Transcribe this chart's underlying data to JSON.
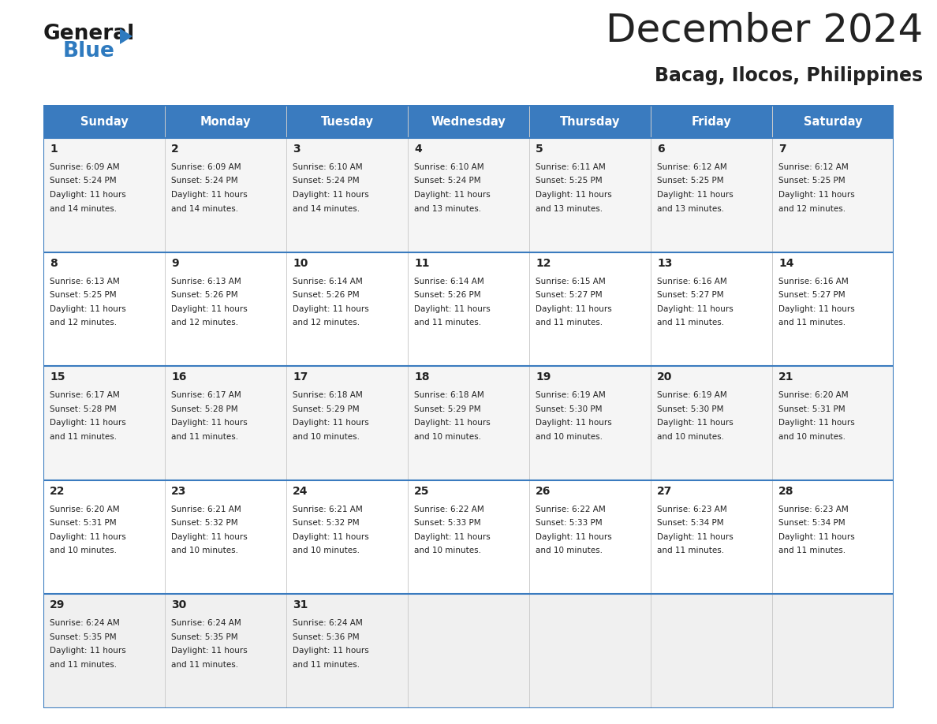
{
  "title": "December 2024",
  "subtitle": "Bacag, Ilocos, Philippines",
  "header_bg_color": "#3a7bbf",
  "header_text_color": "#ffffff",
  "cell_bg_color_even": "#f5f5f5",
  "cell_bg_color_odd": "#ffffff",
  "last_row_bg": "#f0f0f0",
  "grid_line_color": "#3a7bbf",
  "text_color": "#222222",
  "days_of_week": [
    "Sunday",
    "Monday",
    "Tuesday",
    "Wednesday",
    "Thursday",
    "Friday",
    "Saturday"
  ],
  "calendar": [
    [
      {
        "day": 1,
        "sunrise": "6:09 AM",
        "sunset": "5:24 PM",
        "daylight": "11 hours and 14 minutes."
      },
      {
        "day": 2,
        "sunrise": "6:09 AM",
        "sunset": "5:24 PM",
        "daylight": "11 hours and 14 minutes."
      },
      {
        "day": 3,
        "sunrise": "6:10 AM",
        "sunset": "5:24 PM",
        "daylight": "11 hours and 14 minutes."
      },
      {
        "day": 4,
        "sunrise": "6:10 AM",
        "sunset": "5:24 PM",
        "daylight": "11 hours and 13 minutes."
      },
      {
        "day": 5,
        "sunrise": "6:11 AM",
        "sunset": "5:25 PM",
        "daylight": "11 hours and 13 minutes."
      },
      {
        "day": 6,
        "sunrise": "6:12 AM",
        "sunset": "5:25 PM",
        "daylight": "11 hours and 13 minutes."
      },
      {
        "day": 7,
        "sunrise": "6:12 AM",
        "sunset": "5:25 PM",
        "daylight": "11 hours and 12 minutes."
      }
    ],
    [
      {
        "day": 8,
        "sunrise": "6:13 AM",
        "sunset": "5:25 PM",
        "daylight": "11 hours and 12 minutes."
      },
      {
        "day": 9,
        "sunrise": "6:13 AM",
        "sunset": "5:26 PM",
        "daylight": "11 hours and 12 minutes."
      },
      {
        "day": 10,
        "sunrise": "6:14 AM",
        "sunset": "5:26 PM",
        "daylight": "11 hours and 12 minutes."
      },
      {
        "day": 11,
        "sunrise": "6:14 AM",
        "sunset": "5:26 PM",
        "daylight": "11 hours and 11 minutes."
      },
      {
        "day": 12,
        "sunrise": "6:15 AM",
        "sunset": "5:27 PM",
        "daylight": "11 hours and 11 minutes."
      },
      {
        "day": 13,
        "sunrise": "6:16 AM",
        "sunset": "5:27 PM",
        "daylight": "11 hours and 11 minutes."
      },
      {
        "day": 14,
        "sunrise": "6:16 AM",
        "sunset": "5:27 PM",
        "daylight": "11 hours and 11 minutes."
      }
    ],
    [
      {
        "day": 15,
        "sunrise": "6:17 AM",
        "sunset": "5:28 PM",
        "daylight": "11 hours and 11 minutes."
      },
      {
        "day": 16,
        "sunrise": "6:17 AM",
        "sunset": "5:28 PM",
        "daylight": "11 hours and 11 minutes."
      },
      {
        "day": 17,
        "sunrise": "6:18 AM",
        "sunset": "5:29 PM",
        "daylight": "11 hours and 10 minutes."
      },
      {
        "day": 18,
        "sunrise": "6:18 AM",
        "sunset": "5:29 PM",
        "daylight": "11 hours and 10 minutes."
      },
      {
        "day": 19,
        "sunrise": "6:19 AM",
        "sunset": "5:30 PM",
        "daylight": "11 hours and 10 minutes."
      },
      {
        "day": 20,
        "sunrise": "6:19 AM",
        "sunset": "5:30 PM",
        "daylight": "11 hours and 10 minutes."
      },
      {
        "day": 21,
        "sunrise": "6:20 AM",
        "sunset": "5:31 PM",
        "daylight": "11 hours and 10 minutes."
      }
    ],
    [
      {
        "day": 22,
        "sunrise": "6:20 AM",
        "sunset": "5:31 PM",
        "daylight": "11 hours and 10 minutes."
      },
      {
        "day": 23,
        "sunrise": "6:21 AM",
        "sunset": "5:32 PM",
        "daylight": "11 hours and 10 minutes."
      },
      {
        "day": 24,
        "sunrise": "6:21 AM",
        "sunset": "5:32 PM",
        "daylight": "11 hours and 10 minutes."
      },
      {
        "day": 25,
        "sunrise": "6:22 AM",
        "sunset": "5:33 PM",
        "daylight": "11 hours and 10 minutes."
      },
      {
        "day": 26,
        "sunrise": "6:22 AM",
        "sunset": "5:33 PM",
        "daylight": "11 hours and 10 minutes."
      },
      {
        "day": 27,
        "sunrise": "6:23 AM",
        "sunset": "5:34 PM",
        "daylight": "11 hours and 11 minutes."
      },
      {
        "day": 28,
        "sunrise": "6:23 AM",
        "sunset": "5:34 PM",
        "daylight": "11 hours and 11 minutes."
      }
    ],
    [
      {
        "day": 29,
        "sunrise": "6:24 AM",
        "sunset": "5:35 PM",
        "daylight": "11 hours and 11 minutes."
      },
      {
        "day": 30,
        "sunrise": "6:24 AM",
        "sunset": "5:35 PM",
        "daylight": "11 hours and 11 minutes."
      },
      {
        "day": 31,
        "sunrise": "6:24 AM",
        "sunset": "5:36 PM",
        "daylight": "11 hours and 11 minutes."
      },
      null,
      null,
      null,
      null
    ]
  ],
  "logo_color1": "#1a1a1a",
  "logo_color2": "#2e7abf",
  "logo_triangle_color": "#2e7abf",
  "fig_width": 11.88,
  "fig_height": 9.18,
  "dpi": 100
}
